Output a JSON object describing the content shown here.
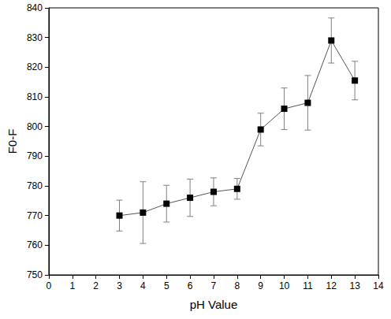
{
  "chart_data": {
    "type": "line",
    "x_label": "pH Value",
    "y_label": "F0-F",
    "x": [
      3,
      4,
      5,
      6,
      7,
      8,
      9,
      10,
      11,
      12,
      13
    ],
    "values": [
      770,
      771,
      774,
      776,
      778,
      779,
      799,
      806,
      808,
      829,
      815.5
    ],
    "errors": [
      5.2,
      10.4,
      6.2,
      6.3,
      4.7,
      3.5,
      5.5,
      7,
      9.2,
      7.6,
      6.5
    ],
    "color": "#000000",
    "marker": "square",
    "line_style": "solid",
    "xlim": [
      0,
      14
    ],
    "xticks": [
      0,
      1,
      2,
      3,
      4,
      5,
      6,
      7,
      8,
      9,
      10,
      11,
      12,
      13,
      14
    ],
    "ylim": [
      750,
      840
    ],
    "yticks": [
      750,
      760,
      770,
      780,
      790,
      800,
      810,
      820,
      830,
      840
    ],
    "grid": false
  }
}
